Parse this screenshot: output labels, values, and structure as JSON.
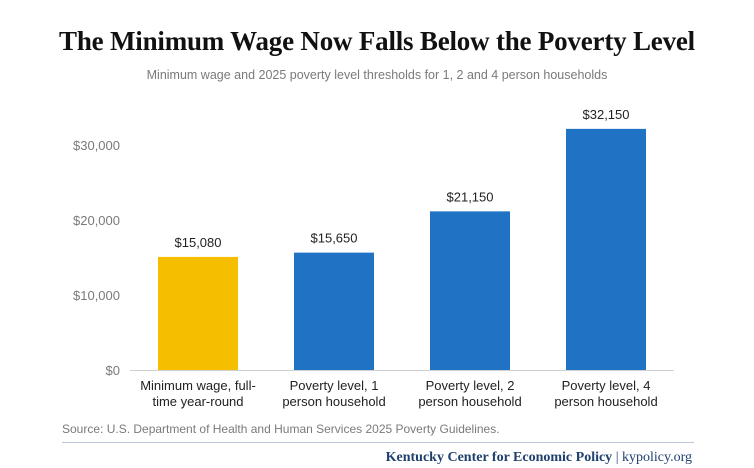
{
  "header": {
    "title": "The Minimum Wage Now Falls Below the Poverty Level",
    "subtitle": "Minimum wage and 2025 poverty level thresholds for 1, 2 and 4 person households"
  },
  "chart_data": {
    "type": "bar",
    "title": "The Minimum Wage Now Falls Below the Poverty Level",
    "subtitle": "Minimum wage and 2025 poverty level thresholds for 1, 2 and 4 person households",
    "categories": [
      [
        "Minimum wage, full-",
        "time year-round"
      ],
      [
        "Poverty level, 1",
        "person household"
      ],
      [
        "Poverty level, 2",
        "person household"
      ],
      [
        "Poverty level, 4",
        "person household"
      ]
    ],
    "values": [
      15080,
      15650,
      21150,
      32150
    ],
    "value_labels": [
      "$15,080",
      "$15,650",
      "$21,150",
      "$32,150"
    ],
    "bar_colors": [
      "#f5bf00",
      "#1f72c4",
      "#1f72c4",
      "#1f72c4"
    ],
    "yticks": [
      0,
      10000,
      20000,
      30000
    ],
    "ytick_labels": [
      "$0",
      "$10,000",
      "$20,000",
      "$30,000"
    ],
    "ylim": [
      0,
      33000
    ],
    "xlabel": "",
    "ylabel": "",
    "grid": false,
    "legend": "none"
  },
  "footer": {
    "source": "Source: U.S. Department of Health and Human Services 2025 Poverty Guidelines.",
    "org": "Kentucky Center for Economic Policy",
    "separator": " | ",
    "site": "kypolicy.org"
  },
  "colors": {
    "accent_blue": "#1f72c4",
    "accent_gold": "#f5bf00",
    "brand_navy": "#1f3f6e"
  }
}
